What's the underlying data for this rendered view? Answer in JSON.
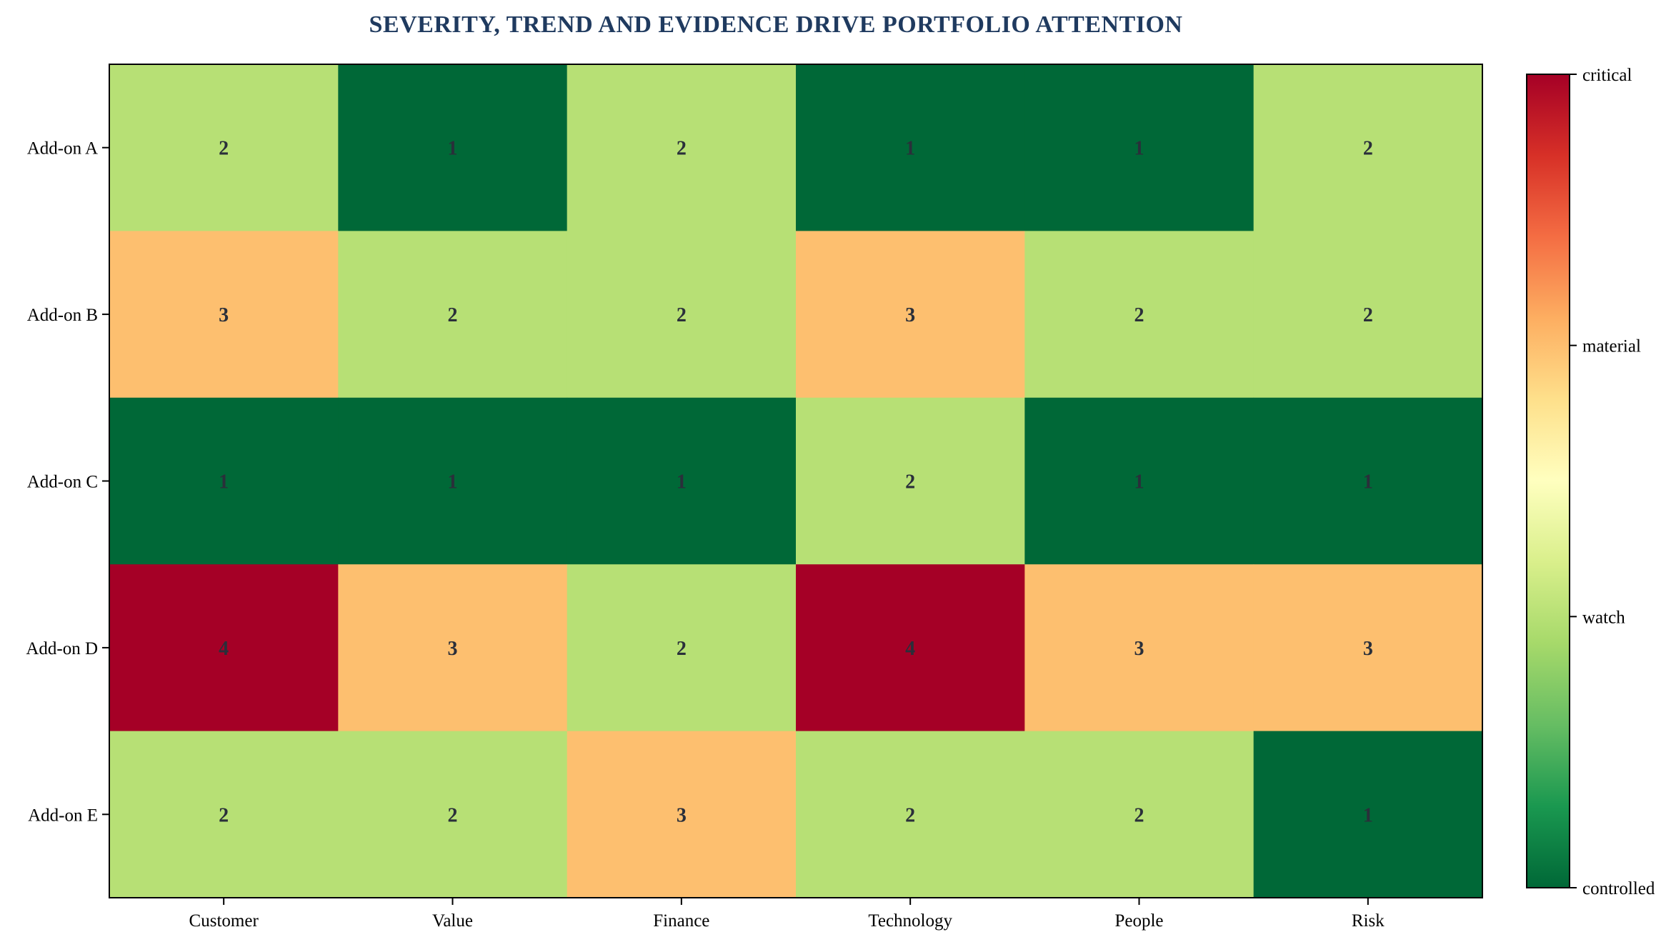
{
  "chart_data": {
    "type": "heatmap",
    "title": "SEVERITY, TREND AND EVIDENCE DRIVE PORTFOLIO ATTENTION",
    "columns": [
      "Customer",
      "Value",
      "Finance",
      "Technology",
      "People",
      "Risk"
    ],
    "rows": [
      "Add-on A",
      "Add-on B",
      "Add-on C",
      "Add-on D",
      "Add-on E"
    ],
    "values": [
      [
        2,
        1,
        2,
        1,
        1,
        2
      ],
      [
        3,
        2,
        2,
        3,
        2,
        2
      ],
      [
        1,
        1,
        1,
        2,
        1,
        1
      ],
      [
        4,
        3,
        2,
        4,
        3,
        3
      ],
      [
        2,
        2,
        3,
        2,
        2,
        1
      ]
    ],
    "value_range": [
      1,
      4
    ],
    "colormap": "RdYlGn_r",
    "level_colors": {
      "1": "#006837",
      "2": "#b7e075",
      "3": "#fdbf6f",
      "4": "#a50026"
    },
    "colorbar": {
      "position": "right",
      "ticks": [
        {
          "value": 1,
          "label": "controlled"
        },
        {
          "value": 2,
          "label": "watch"
        },
        {
          "value": 3,
          "label": "material"
        },
        {
          "value": 4,
          "label": "critical"
        }
      ]
    },
    "grid": false
  }
}
